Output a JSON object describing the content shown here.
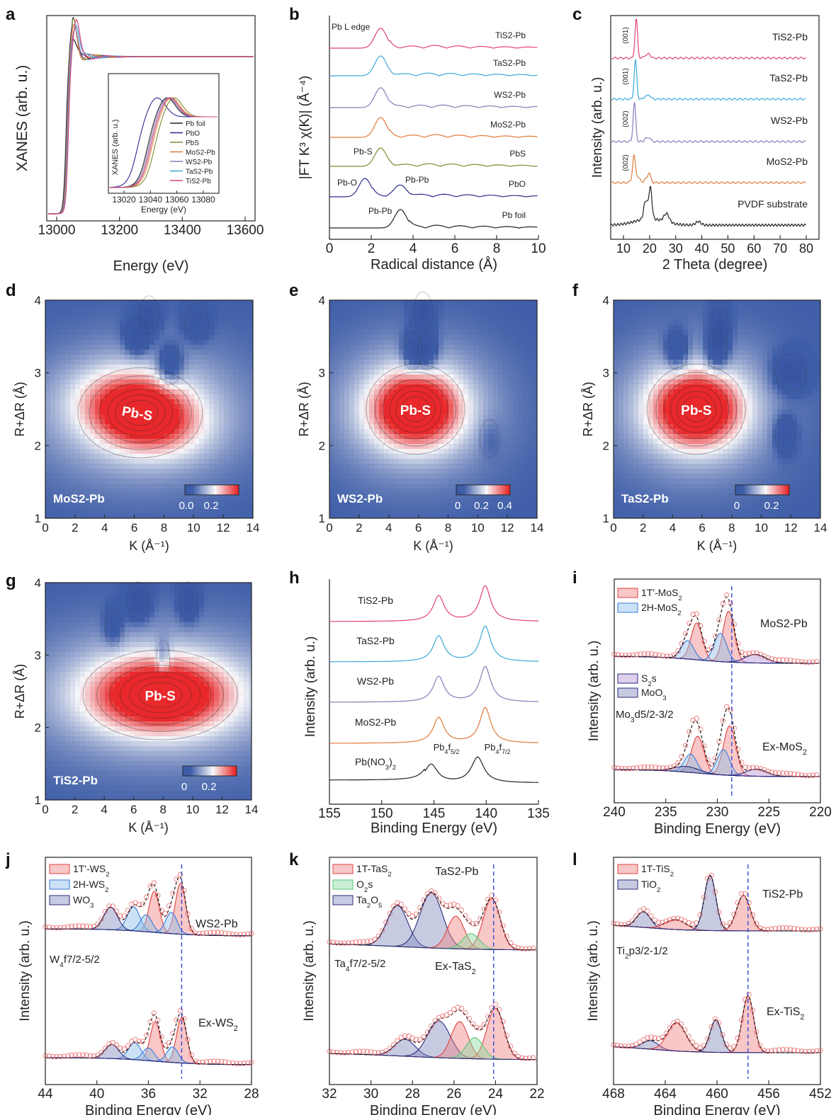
{
  "colors": {
    "pb_foil": "#222222",
    "pbo": "#2b2b8f",
    "pbs": "#7f8a2a",
    "mos2": "#e07a3a",
    "ws2": "#8a7ab8",
    "tas2": "#3aa8d8",
    "tis2": "#e0407a",
    "pvdf": "#222222",
    "fit_red": "#e04040",
    "fit_blue": "#3a7ad8",
    "fit_navy": "#2b2b7a",
    "fit_green": "#5ac87a",
    "map_low": "#3f5ea8",
    "map_high": "#e8282a"
  },
  "chart_data": [
    {
      "id": "a",
      "type": "line",
      "panel_label": "a",
      "xlabel": "Energy (eV)",
      "ylabel": "XANES (arb. u.)",
      "xticks": [
        "13000",
        "13200",
        "13400",
        "13600"
      ],
      "inset": {
        "xlabel": "Energy (eV)",
        "ylabel": "XANES (arb. u.)",
        "xticks": [
          "13020",
          "13040",
          "13060",
          "13080"
        ],
        "legend": [
          "Pb foil",
          "PbO",
          "PbS",
          "MoS2-Pb",
          "WS2-Pb",
          "TaS2-Pb",
          "TiS2-Pb"
        ]
      }
    },
    {
      "id": "b",
      "type": "line",
      "panel_label": "b",
      "xlabel": "Radical distance (Å)",
      "ylabel": "|FT K³ χ(K)| (Å⁻⁴)",
      "xticks": [
        "0",
        "2",
        "4",
        "6",
        "8",
        "10"
      ],
      "edge_label": "Pb L edge",
      "series": [
        "TiS2-Pb",
        "TaS2-Pb",
        "WS2-Pb",
        "MoS2-Pb",
        "PbS",
        "PbO",
        "Pb foil"
      ],
      "annotations": [
        "Pb-S",
        "Pb-O",
        "Pb-Pb",
        "Pb-Pb"
      ]
    },
    {
      "id": "c",
      "type": "line",
      "panel_label": "c",
      "xlabel": "2 Theta (degree)",
      "ylabel": "Intensity (arb. u.)",
      "xticks": [
        "10",
        "20",
        "30",
        "40",
        "50",
        "60",
        "70",
        "80"
      ],
      "series": [
        "TiS2-Pb",
        "TaS2-Pb",
        "WS2-Pb",
        "MoS2-Pb",
        "PVDF substrate"
      ],
      "peak_labels": [
        "(001)",
        "(001)",
        "(002)",
        "(002)"
      ]
    },
    {
      "id": "d",
      "type": "heatmap",
      "panel_label": "d",
      "xlabel": "K (Å⁻¹)",
      "ylabel": "R+ΔR (Å)",
      "xticks": [
        "0",
        "2",
        "4",
        "6",
        "8",
        "10",
        "12",
        "14"
      ],
      "yticks": [
        "1",
        "2",
        "3",
        "4"
      ],
      "sample": "MoS2-Pb",
      "peak": "Pb-S",
      "colorbar_ticks": [
        "0.0",
        "0.2"
      ]
    },
    {
      "id": "e",
      "type": "heatmap",
      "panel_label": "e",
      "xlabel": "K (Å⁻¹)",
      "ylabel": "R+ΔR (Å)",
      "xticks": [
        "0",
        "2",
        "4",
        "6",
        "8",
        "10",
        "12",
        "14"
      ],
      "yticks": [
        "1",
        "2",
        "3",
        "4"
      ],
      "sample": "WS2-Pb",
      "peak": "Pb-S",
      "colorbar_ticks": [
        "0",
        "0.2",
        "0.4"
      ]
    },
    {
      "id": "f",
      "type": "heatmap",
      "panel_label": "f",
      "xlabel": "K (Å⁻¹)",
      "ylabel": "R+ΔR (Å)",
      "xticks": [
        "0",
        "2",
        "4",
        "6",
        "8",
        "10",
        "12",
        "14"
      ],
      "yticks": [
        "1",
        "2",
        "3",
        "4"
      ],
      "sample": "TaS2-Pb",
      "peak": "Pb-S",
      "colorbar_ticks": [
        "0",
        "0.2"
      ]
    },
    {
      "id": "g",
      "type": "heatmap",
      "panel_label": "g",
      "xlabel": "K (Å⁻¹)",
      "ylabel": "R+ΔR (Å)",
      "xticks": [
        "0",
        "2",
        "4",
        "6",
        "8",
        "10",
        "12",
        "14"
      ],
      "yticks": [
        "1",
        "2",
        "3",
        "4"
      ],
      "sample": "TiS2-Pb",
      "peak": "Pb-S",
      "colorbar_ticks": [
        "0",
        "0.2"
      ]
    },
    {
      "id": "h",
      "type": "line",
      "panel_label": "h",
      "xlabel": "Binding Energy (eV)",
      "ylabel": "Intensity (arb. u.)",
      "xticks": [
        "155",
        "150",
        "145",
        "140",
        "135"
      ],
      "series": [
        "TiS2-Pb",
        "TaS2-Pb",
        "WS2-Pb",
        "MoS2-Pb",
        "Pb(NO3)2"
      ],
      "peak_labels": [
        "Pb4f5/2",
        "Pb4f7/2"
      ]
    },
    {
      "id": "i",
      "type": "line",
      "panel_label": "i",
      "xlabel": "Binding Energy (eV)",
      "ylabel": "Intensity (arb. u.)",
      "xticks": [
        "240",
        "235",
        "230",
        "225",
        "220"
      ],
      "legend_top": [
        "1T'-MoS2",
        "2H-MoS2"
      ],
      "legend_mid": [
        "S2s",
        "MoO3"
      ],
      "region": "Mo3d5/2-3/2",
      "samples": [
        "MoS2-Pb",
        "Ex-MoS2"
      ]
    },
    {
      "id": "j",
      "type": "line",
      "panel_label": "j",
      "xlabel": "Binding Energy (eV)",
      "ylabel": "Intensity (arb. u.)",
      "xticks": [
        "44",
        "40",
        "36",
        "32",
        "28"
      ],
      "legend": [
        "1T'-WS2",
        "2H-WS2",
        "WO3"
      ],
      "region": "W4f7/2-5/2",
      "samples": [
        "WS2-Pb",
        "Ex-WS2"
      ]
    },
    {
      "id": "k",
      "type": "line",
      "panel_label": "k",
      "xlabel": "Binding Energy (eV)",
      "ylabel": "Intensity (arb. u.)",
      "xticks": [
        "32",
        "30",
        "28",
        "26",
        "24",
        "22"
      ],
      "legend": [
        "1T-TaS2",
        "O2s",
        "Ta2O5"
      ],
      "region": "Ta4f7/2-5/2",
      "samples": [
        "TaS2-Pb",
        "Ex-TaS2"
      ]
    },
    {
      "id": "l",
      "type": "line",
      "panel_label": "l",
      "xlabel": "Binding Energy (eV)",
      "ylabel": "Intensity (arb. u.)",
      "xticks": [
        "468",
        "464",
        "460",
        "456",
        "452"
      ],
      "legend": [
        "1T-TiS2",
        "TiO2"
      ],
      "region": "Ti2p3/2-1/2",
      "samples": [
        "TiS2-Pb",
        "Ex-TiS2"
      ]
    }
  ]
}
